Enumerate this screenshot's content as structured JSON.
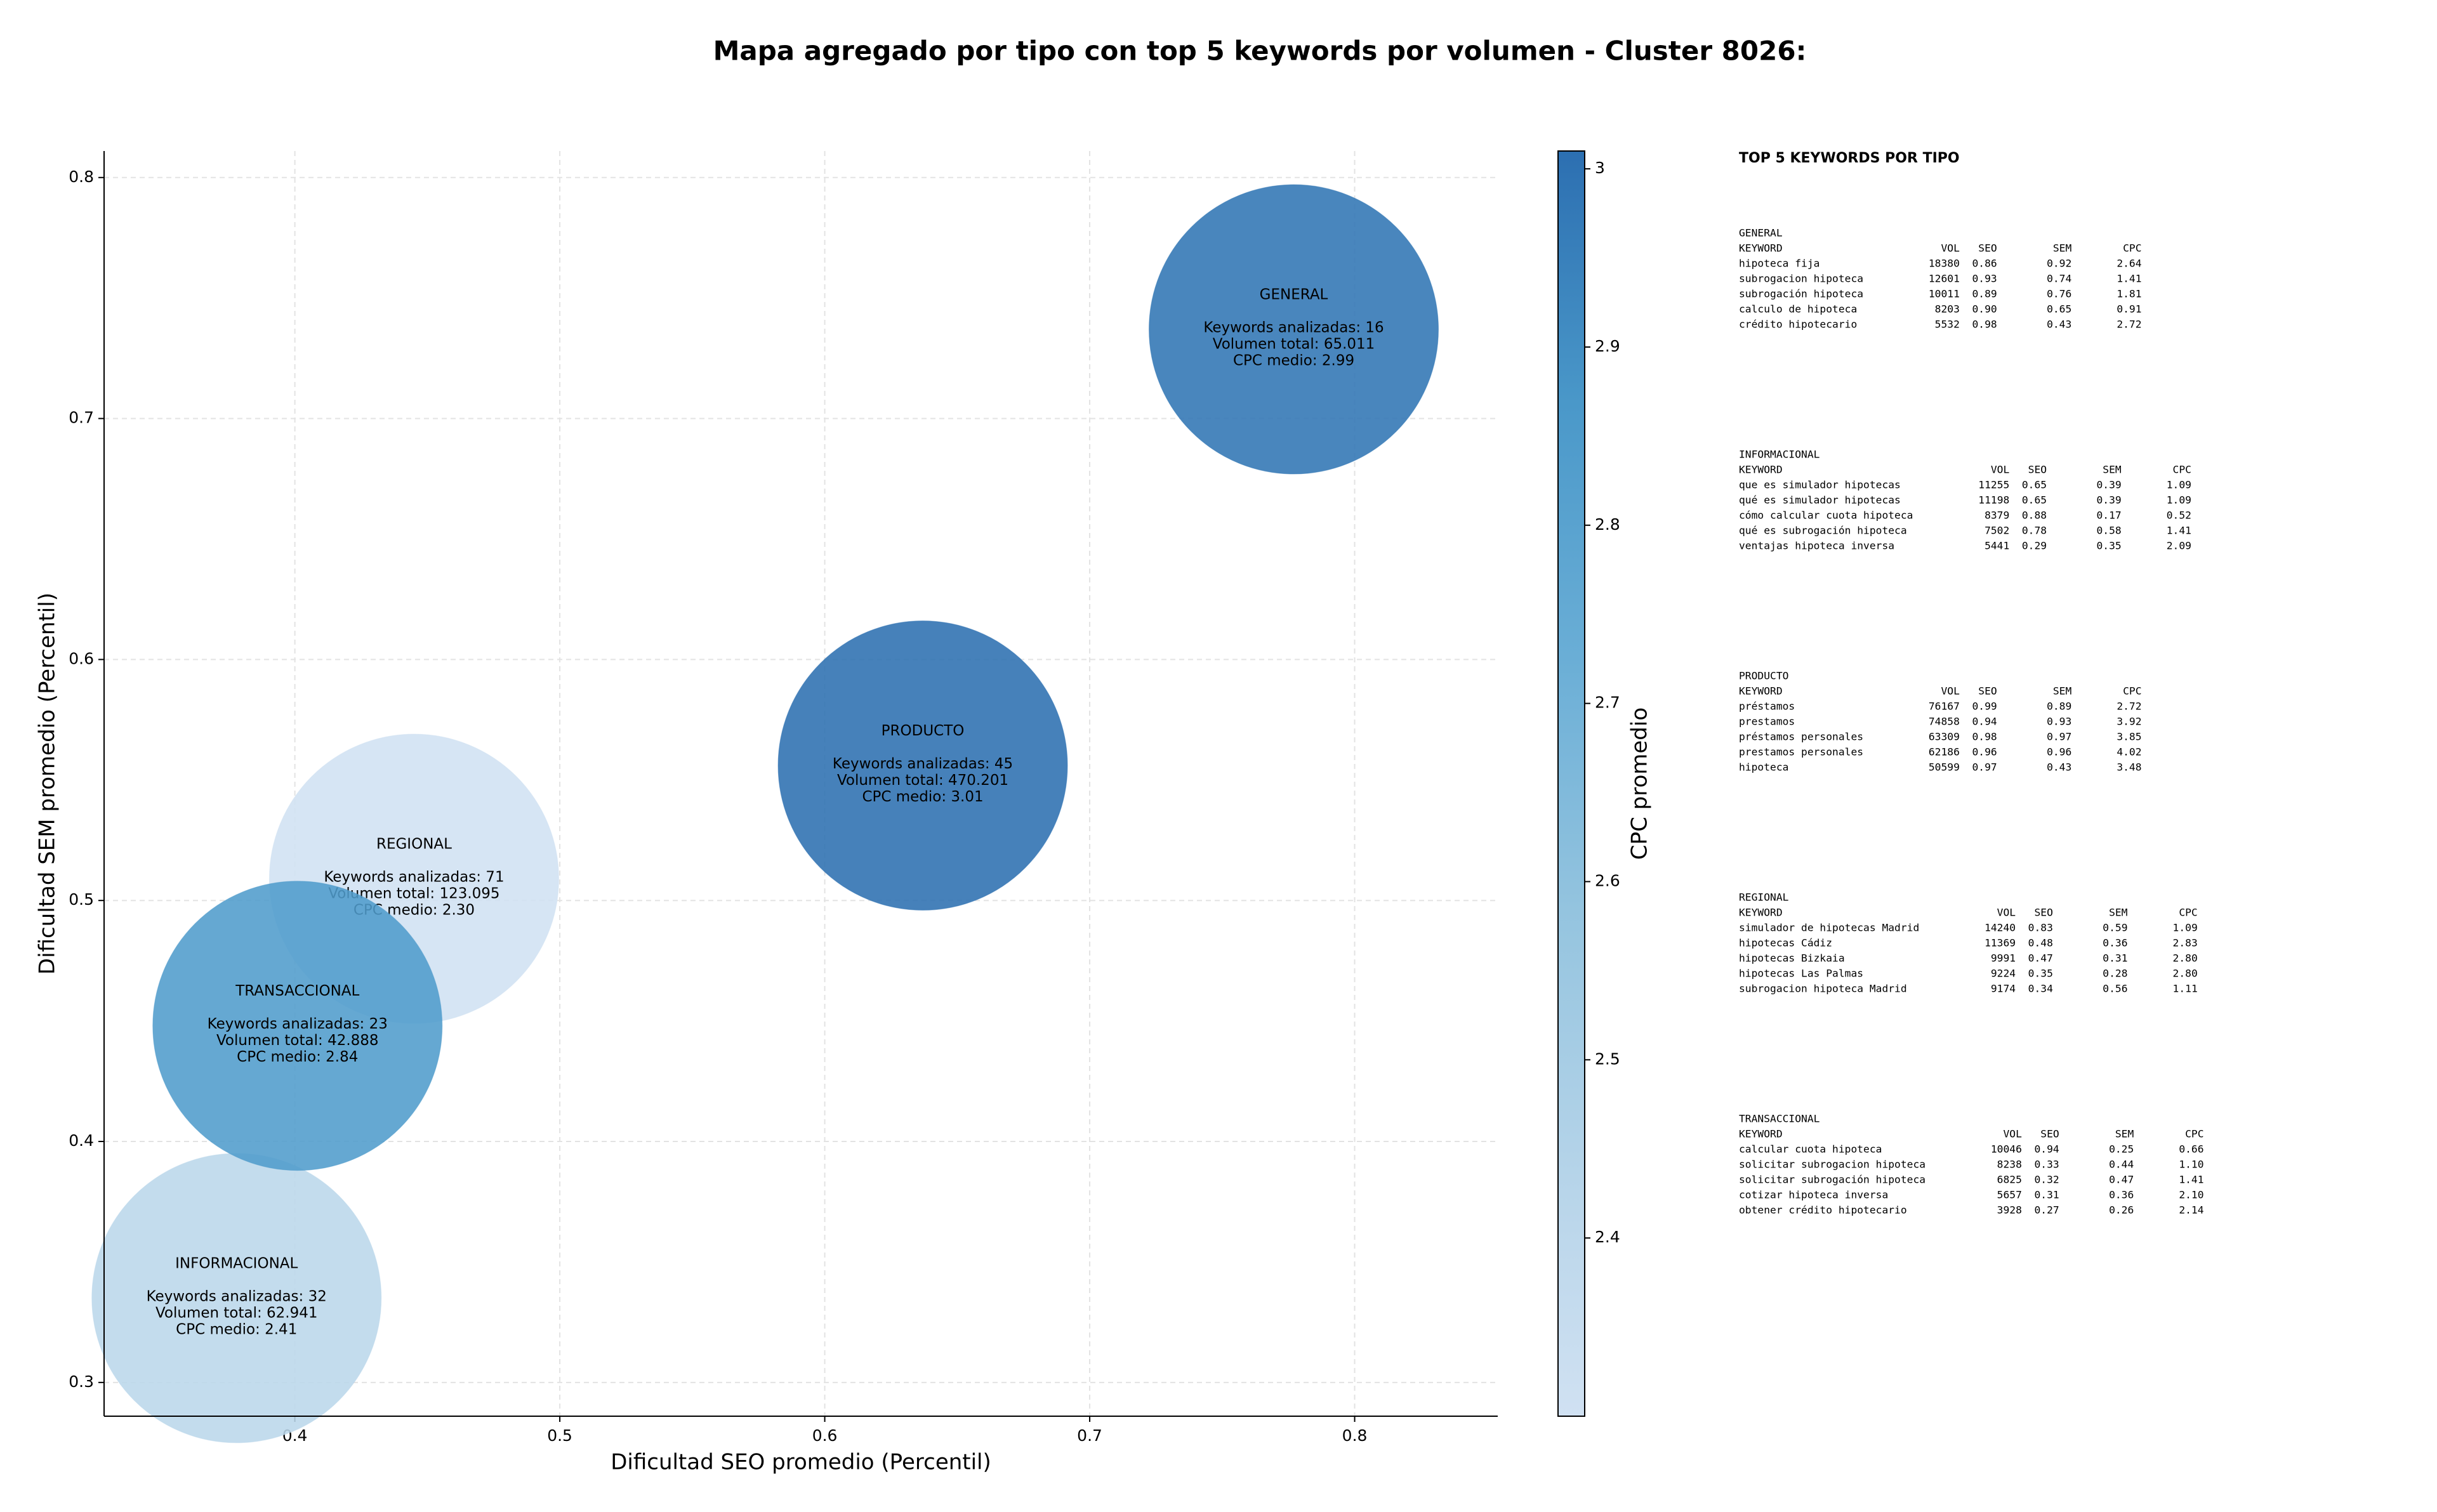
{
  "chart_data": {
    "type": "bubble",
    "title": "Mapa agregado por tipo con top 5 keywords por volumen - Cluster 8026:",
    "x_label": "Dificultad SEO promedio (Percentil)",
    "y_label": "Dificultad SEM promedio (Percentil)",
    "categories": [
      "GENERAL",
      "INFORMACIONAL",
      "PRODUCTO",
      "REGIONAL",
      "TRANSACCIONAL"
    ],
    "x": [
      0.777,
      0.378,
      0.637,
      0.445,
      0.401
    ],
    "values": [
      0.737,
      0.335,
      0.556,
      0.509,
      0.448
    ],
    "color_values": [
      2.99,
      2.41,
      3.01,
      2.3,
      2.84
    ],
    "color_value_labels": [
      "CPC medio: 2.99",
      "CPC medio: 2.41",
      "CPC medio: 3.01",
      "CPC medio: 2.30",
      "CPC medio: 2.84"
    ],
    "keyword_labels": [
      "Keywords analizadas: 16",
      "Keywords analizadas: 32",
      "Keywords analizadas: 45",
      "Keywords analizadas: 71",
      "Keywords analizadas: 23"
    ],
    "volume_labels": [
      "Volumen total: 65.011",
      "Volumen total: 62.941",
      "Volumen total: 470.201",
      "Volumen total: 123.095",
      "Volumen total: 42.888"
    ],
    "xlim": [
      0.328,
      0.854
    ],
    "ylim": [
      0.286,
      0.811
    ],
    "xticks": [
      0.4,
      0.5,
      0.6,
      0.7,
      0.8
    ],
    "yticks": [
      0.3,
      0.4,
      0.5,
      0.6,
      0.7,
      0.8
    ],
    "grid": true,
    "colorbar": {
      "label": "CPC promedio",
      "lim": [
        2.3,
        3.01
      ],
      "ticks": [
        2.4,
        2.5,
        2.6,
        2.7,
        2.8,
        2.9,
        3.0
      ]
    }
  },
  "side_panel": {
    "title": "TOP 5 KEYWORDS POR TIPO",
    "sections": [
      {
        "name": "GENERAL",
        "header": [
          "KEYWORD",
          "VOL",
          "SEO",
          "SEM",
          "CPC"
        ],
        "rows": [
          [
            "hipoteca fija",
            "18380",
            "0.86",
            "0.92",
            "2.64"
          ],
          [
            "subrogacion hipoteca",
            "12601",
            "0.93",
            "0.74",
            "1.41"
          ],
          [
            "subrogación hipoteca",
            "10011",
            "0.89",
            "0.76",
            "1.81"
          ],
          [
            "calculo de hipoteca",
            "8203",
            "0.90",
            "0.65",
            "0.91"
          ],
          [
            "crédito hipotecario",
            "5532",
            "0.98",
            "0.43",
            "2.72"
          ]
        ]
      },
      {
        "name": "INFORMACIONAL",
        "header": [
          "KEYWORD",
          "VOL",
          "SEO",
          "SEM",
          "CPC"
        ],
        "rows": [
          [
            "que es simulador hipotecas",
            "11255",
            "0.65",
            "0.39",
            "1.09"
          ],
          [
            "qué es simulador hipotecas",
            "11198",
            "0.65",
            "0.39",
            "1.09"
          ],
          [
            "cómo calcular cuota hipoteca",
            "8379",
            "0.88",
            "0.17",
            "0.52"
          ],
          [
            "qué es subrogación hipoteca",
            "7502",
            "0.78",
            "0.58",
            "1.41"
          ],
          [
            "ventajas hipoteca inversa",
            "5441",
            "0.29",
            "0.35",
            "2.09"
          ]
        ]
      },
      {
        "name": "PRODUCTO",
        "header": [
          "KEYWORD",
          "VOL",
          "SEO",
          "SEM",
          "CPC"
        ],
        "rows": [
          [
            "préstamos",
            "76167",
            "0.99",
            "0.89",
            "2.72"
          ],
          [
            "prestamos",
            "74858",
            "0.94",
            "0.93",
            "3.92"
          ],
          [
            "préstamos personales",
            "63309",
            "0.98",
            "0.97",
            "3.85"
          ],
          [
            "prestamos personales",
            "62186",
            "0.96",
            "0.96",
            "4.02"
          ],
          [
            "hipoteca",
            "50599",
            "0.97",
            "0.43",
            "3.48"
          ]
        ]
      },
      {
        "name": "REGIONAL",
        "header": [
          "KEYWORD",
          "VOL",
          "SEO",
          "SEM",
          "CPC"
        ],
        "rows": [
          [
            "simulador de hipotecas Madrid",
            "14240",
            "0.83",
            "0.59",
            "1.09"
          ],
          [
            "hipotecas Cádiz",
            "11369",
            "0.48",
            "0.36",
            "2.83"
          ],
          [
            "hipotecas Bizkaia",
            "9991",
            "0.47",
            "0.31",
            "2.80"
          ],
          [
            "hipotecas Las Palmas",
            "9224",
            "0.35",
            "0.28",
            "2.80"
          ],
          [
            "subrogacion hipoteca Madrid",
            "9174",
            "0.34",
            "0.56",
            "1.11"
          ]
        ]
      },
      {
        "name": "TRANSACCIONAL",
        "header": [
          "KEYWORD",
          "VOL",
          "SEO",
          "SEM",
          "CPC"
        ],
        "rows": [
          [
            "calcular cuota hipoteca",
            "10046",
            "0.94",
            "0.25",
            "0.66"
          ],
          [
            "solicitar subrogacion hipoteca",
            "8238",
            "0.33",
            "0.44",
            "1.10"
          ],
          [
            "solicitar subrogación hipoteca",
            "6825",
            "0.32",
            "0.47",
            "1.41"
          ],
          [
            "cotizar hipoteca inversa",
            "5657",
            "0.31",
            "0.36",
            "2.10"
          ],
          [
            "obtener crédito hipotecario",
            "3928",
            "0.27",
            "0.26",
            "2.14"
          ]
        ]
      }
    ]
  }
}
